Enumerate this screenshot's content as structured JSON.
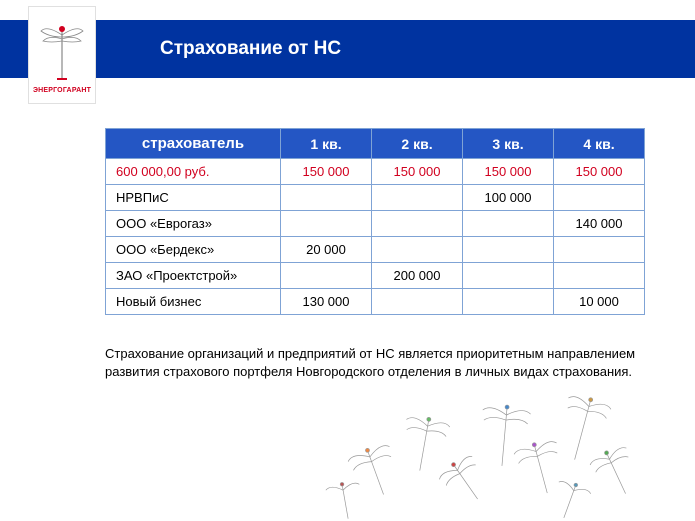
{
  "header": {
    "title": "Страхование от НС",
    "background_color": "#0033a0",
    "title_color": "#ffffff"
  },
  "logo": {
    "caption": "ЭНЕРГОГАРАНТ",
    "caption_color": "#d1001f"
  },
  "table": {
    "header_bg": "#2456c4",
    "header_text_color": "#ffffff",
    "border_color": "#7fa3d5",
    "highlight_color": "#d1001f",
    "columns": [
      "страхователь",
      "1 кв.",
      "2 кв.",
      "3 кв.",
      "4 кв."
    ],
    "rows": [
      {
        "label": "600 000,00 руб.",
        "q1": "150 000",
        "q2": "150 000",
        "q3": "150 000",
        "q4": "150 000",
        "highlight": true
      },
      {
        "label": "НРВПиС",
        "q1": "",
        "q2": "",
        "q3": "100 000",
        "q4": "",
        "highlight": false
      },
      {
        "label": "ООО «Еврогаз»",
        "q1": "",
        "q2": "",
        "q3": "",
        "q4": "140 000",
        "highlight": false
      },
      {
        "label": "ООО «Бердекс»",
        "q1": "20 000",
        "q2": "",
        "q3": "",
        "q4": "",
        "highlight": false
      },
      {
        "label": "ЗАО «Проектстрой»",
        "q1": "",
        "q2": "200 000",
        "q3": "",
        "q4": "",
        "highlight": false
      },
      {
        "label": "Новый бизнес",
        "q1": "130 000",
        "q2": "",
        "q3": "",
        "q4": "10 000",
        "highlight": false
      }
    ]
  },
  "paragraph": {
    "text": "Страхование организаций и предприятий от НС является приоритетным направлением развития страхового портфеля Новгородского отделения в личных видах страхования."
  }
}
